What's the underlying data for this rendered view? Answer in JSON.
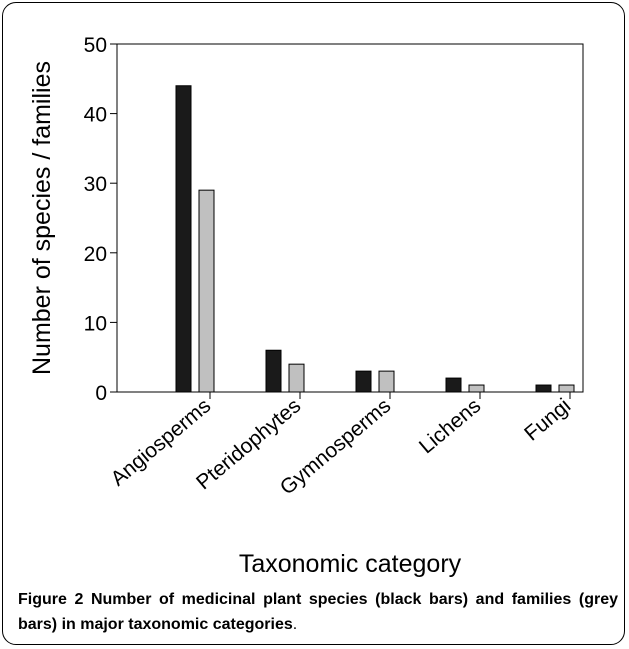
{
  "chart_data": {
    "type": "bar",
    "categories": [
      "Angiosperms",
      "Pteridophytes",
      "Gymnosperms",
      "Lichens",
      "Fungi"
    ],
    "series": [
      {
        "name": "species",
        "color": "#1a1a1a",
        "values": [
          44,
          6,
          3,
          2,
          1
        ]
      },
      {
        "name": "families",
        "color": "#c0c0c0",
        "values": [
          29,
          4,
          3,
          1,
          1
        ]
      }
    ],
    "xlabel": "Taxonomic category",
    "ylabel": "Number of species / families",
    "ylim": [
      0,
      50
    ],
    "yticks": [
      0,
      10,
      20,
      30,
      40,
      50
    ],
    "grid": false,
    "legend": "none"
  },
  "caption": {
    "label": "Figure 2",
    "text": "Number of medicinal plant species (black bars) and families (grey bars) in major taxonomic categories",
    "end": "."
  }
}
